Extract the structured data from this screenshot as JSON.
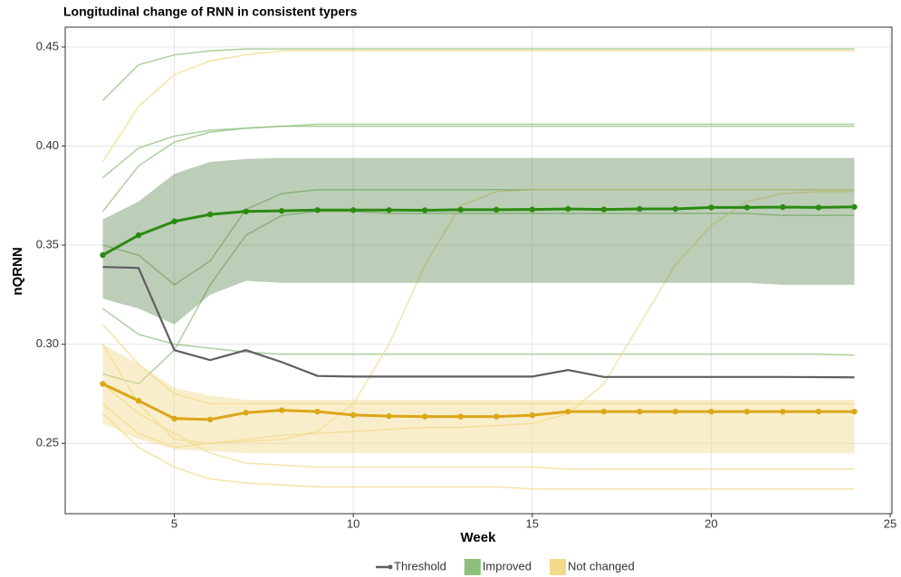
{
  "chart_data": {
    "type": "line",
    "title": "Longitudinal change of RNN in consistent typers",
    "x_label": "Week",
    "y_label": "nQRNN",
    "x": [
      3,
      4,
      5,
      6,
      7,
      8,
      9,
      10,
      11,
      12,
      13,
      14,
      15,
      16,
      17,
      18,
      19,
      20,
      21,
      22,
      23,
      24
    ],
    "xlim": [
      1.95,
      25.05
    ],
    "xticks": [
      5,
      10,
      15,
      20,
      25
    ],
    "ylim": [
      0.2145,
      0.46
    ],
    "yticks": [
      {
        "value": 0.25,
        "label": "0.25"
      },
      {
        "value": 0.3,
        "label": "0.30"
      },
      {
        "value": 0.35,
        "label": "0.35"
      },
      {
        "value": 0.4,
        "label": "0.40"
      },
      {
        "value": 0.45,
        "label": "0.45"
      }
    ],
    "grid": true,
    "legend": "bottom",
    "individual_lines": [
      {
        "color": "#8dc07c",
        "values": [
          0.423,
          0.441,
          0.446,
          0.448,
          0.449,
          0.449,
          0.449,
          0.449,
          0.449,
          0.449,
          0.449,
          0.449,
          0.449,
          0.449,
          0.449,
          0.449,
          0.449,
          0.449,
          0.449,
          0.449,
          0.449,
          0.449
        ]
      },
      {
        "color": "#8dc07c",
        "values": [
          0.384,
          0.399,
          0.405,
          0.408,
          0.409,
          0.41,
          0.411,
          0.411,
          0.411,
          0.411,
          0.411,
          0.411,
          0.411,
          0.411,
          0.411,
          0.411,
          0.411,
          0.411,
          0.411,
          0.411,
          0.411,
          0.411
        ]
      },
      {
        "color": "#8dc07c",
        "values": [
          0.367,
          0.39,
          0.402,
          0.407,
          0.409,
          0.41,
          0.41,
          0.41,
          0.41,
          0.41,
          0.41,
          0.41,
          0.41,
          0.41,
          0.41,
          0.41,
          0.41,
          0.41,
          0.41,
          0.41,
          0.41,
          0.41
        ]
      },
      {
        "color": "#8dc07c",
        "values": [
          0.35,
          0.345,
          0.33,
          0.342,
          0.368,
          0.376,
          0.378,
          0.378,
          0.378,
          0.378,
          0.378,
          0.378,
          0.378,
          0.378,
          0.378,
          0.378,
          0.378,
          0.378,
          0.378,
          0.378,
          0.378,
          0.378
        ]
      },
      {
        "color": "#8dc07c",
        "values": [
          0.318,
          0.305,
          0.3,
          0.298,
          0.296,
          0.295,
          0.295,
          0.295,
          0.295,
          0.295,
          0.295,
          0.295,
          0.295,
          0.295,
          0.295,
          0.295,
          0.295,
          0.295,
          0.295,
          0.295,
          0.295,
          0.2945
        ]
      },
      {
        "color": "#8dc07c",
        "values": [
          0.285,
          0.28,
          0.297,
          0.33,
          0.355,
          0.365,
          0.367,
          0.367,
          0.366,
          0.366,
          0.366,
          0.366,
          0.366,
          0.366,
          0.366,
          0.366,
          0.366,
          0.366,
          0.366,
          0.365,
          0.365,
          0.365
        ]
      },
      {
        "color": "#f2d98c",
        "values": [
          0.392,
          0.42,
          0.436,
          0.443,
          0.446,
          0.448,
          0.448,
          0.448,
          0.448,
          0.448,
          0.448,
          0.448,
          0.448,
          0.448,
          0.448,
          0.448,
          0.448,
          0.448,
          0.448,
          0.448,
          0.448,
          0.448
        ]
      },
      {
        "color": "#f2d98c",
        "values": [
          0.3,
          0.27,
          0.252,
          0.25,
          0.251,
          0.252,
          0.256,
          0.27,
          0.3,
          0.34,
          0.37,
          0.377,
          0.378,
          0.378,
          0.378,
          0.378,
          0.378,
          0.378,
          0.378,
          0.378,
          0.378,
          0.378
        ]
      },
      {
        "color": "#f2d98c",
        "values": [
          0.27,
          0.255,
          0.248,
          0.25,
          0.252,
          0.254,
          0.255,
          0.256,
          0.257,
          0.258,
          0.258,
          0.259,
          0.26,
          0.265,
          0.28,
          0.31,
          0.34,
          0.36,
          0.372,
          0.376,
          0.377,
          0.377
        ]
      },
      {
        "color": "#f2d98c",
        "values": [
          0.265,
          0.248,
          0.238,
          0.232,
          0.23,
          0.229,
          0.228,
          0.228,
          0.228,
          0.228,
          0.228,
          0.228,
          0.227,
          0.227,
          0.227,
          0.227,
          0.227,
          0.227,
          0.227,
          0.227,
          0.227,
          0.227
        ]
      },
      {
        "color": "#f2d98c",
        "values": [
          0.28,
          0.265,
          0.255,
          0.245,
          0.24,
          0.239,
          0.238,
          0.238,
          0.238,
          0.238,
          0.238,
          0.238,
          0.238,
          0.237,
          0.237,
          0.237,
          0.237,
          0.237,
          0.237,
          0.237,
          0.237,
          0.237
        ]
      },
      {
        "color": "#f2d98c",
        "values": [
          0.31,
          0.29,
          0.275,
          0.27,
          0.27,
          0.27,
          0.27,
          0.27,
          0.27,
          0.27,
          0.27,
          0.27,
          0.27,
          0.27,
          0.27,
          0.27,
          0.27,
          0.27,
          0.27,
          0.27,
          0.27,
          0.27
        ]
      }
    ],
    "series": [
      {
        "name": "Threshold",
        "color": "#5f5f5f",
        "points": false,
        "values": [
          0.339,
          0.3385,
          0.297,
          0.292,
          0.297,
          0.291,
          0.284,
          0.2837,
          0.2837,
          0.2837,
          0.2837,
          0.2837,
          0.2837,
          0.287,
          0.2835,
          0.2835,
          0.2835,
          0.2835,
          0.2835,
          0.2835,
          0.2834,
          0.2833
        ]
      },
      {
        "name": "Improved",
        "color": "#2b8a12",
        "band_color": "#4f7f45",
        "key_color": "#8dc07c",
        "points": true,
        "values": [
          0.345,
          0.355,
          0.362,
          0.3655,
          0.367,
          0.3673,
          0.3677,
          0.3677,
          0.3677,
          0.3676,
          0.3679,
          0.3679,
          0.368,
          0.3683,
          0.368,
          0.3683,
          0.3683,
          0.369,
          0.369,
          0.3692,
          0.369,
          0.3693
        ],
        "upper": [
          0.363,
          0.372,
          0.386,
          0.392,
          0.3935,
          0.394,
          0.394,
          0.394,
          0.394,
          0.394,
          0.394,
          0.394,
          0.394,
          0.394,
          0.394,
          0.394,
          0.394,
          0.394,
          0.394,
          0.394,
          0.394,
          0.394
        ],
        "lower": [
          0.323,
          0.318,
          0.31,
          0.325,
          0.332,
          0.331,
          0.331,
          0.331,
          0.331,
          0.331,
          0.331,
          0.331,
          0.331,
          0.331,
          0.331,
          0.331,
          0.331,
          0.331,
          0.331,
          0.33,
          0.33,
          0.33
        ]
      },
      {
        "name": "Not changed",
        "color": "#dba618",
        "band_color": "#f2d98c",
        "key_color": "#f2d98c",
        "points": true,
        "values": [
          0.28,
          0.2715,
          0.2625,
          0.262,
          0.2655,
          0.2667,
          0.266,
          0.2643,
          0.2637,
          0.2635,
          0.2635,
          0.2635,
          0.2642,
          0.266,
          0.266,
          0.266,
          0.266,
          0.266,
          0.266,
          0.266,
          0.266,
          0.266
        ],
        "upper": [
          0.3,
          0.29,
          0.278,
          0.274,
          0.272,
          0.272,
          0.272,
          0.272,
          0.272,
          0.272,
          0.272,
          0.272,
          0.272,
          0.272,
          0.272,
          0.272,
          0.272,
          0.272,
          0.272,
          0.272,
          0.272,
          0.272
        ],
        "lower": [
          0.26,
          0.252,
          0.247,
          0.246,
          0.245,
          0.245,
          0.245,
          0.245,
          0.245,
          0.245,
          0.245,
          0.245,
          0.245,
          0.245,
          0.245,
          0.245,
          0.245,
          0.245,
          0.245,
          0.245,
          0.245,
          0.245
        ]
      }
    ]
  }
}
